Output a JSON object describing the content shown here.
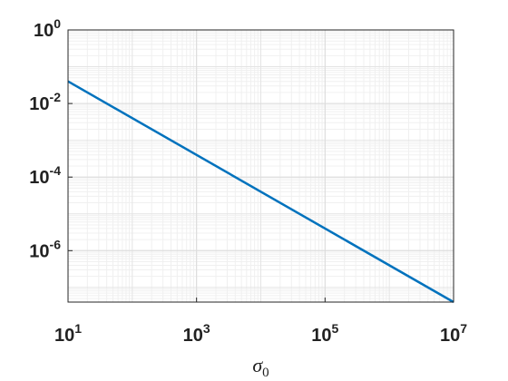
{
  "chart_data": {
    "type": "line",
    "x_label": "σ_0",
    "x": [
      10,
      10000000
    ],
    "series": [
      {
        "color": "#0072bd",
        "values": [
          0.04,
          4e-08
        ]
      }
    ],
    "xlog": true,
    "ylog": true,
    "xlim": [
      10,
      10000000
    ],
    "ylim": [
      4e-08,
      1
    ],
    "xticks": [
      {
        "value": 10,
        "label": "10^1"
      },
      {
        "value": 1000,
        "label": "10^3"
      },
      {
        "value": 100000,
        "label": "10^5"
      },
      {
        "value": 10000000,
        "label": "10^7"
      }
    ],
    "yticks": [
      {
        "value": 1e-06,
        "label": "10^-6"
      },
      {
        "value": 0.0001,
        "label": "10^-4"
      },
      {
        "value": 0.01,
        "label": "10^-2"
      },
      {
        "value": 1,
        "label": "10^0"
      }
    ],
    "grid": true,
    "minor_grid": true
  }
}
